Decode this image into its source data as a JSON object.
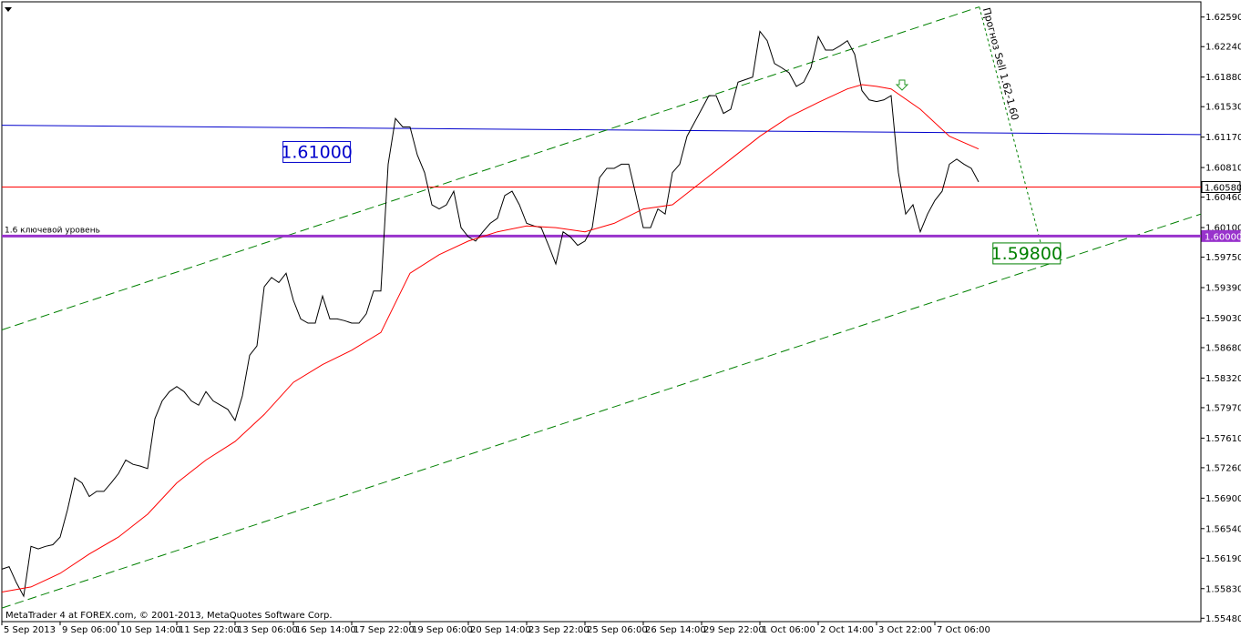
{
  "chart_data": {
    "type": "line",
    "footer": "MetaTrader 4 at FOREX.com, © 2001-2013, MetaQuotes Software Corp.",
    "xlim": [
      0,
      164.5
    ],
    "ylim": [
      1.5544,
      1.6277
    ],
    "xticks": [
      {
        "value": 0,
        "label": "5 Sep 2013"
      },
      {
        "value": 8,
        "label": "9 Sep 06:00"
      },
      {
        "value": 16,
        "label": "10 Sep 14:00"
      },
      {
        "value": 24,
        "label": "11 Sep 22:00"
      },
      {
        "value": 32,
        "label": "13 Sep 06:00"
      },
      {
        "value": 40,
        "label": "16 Sep 14:00"
      },
      {
        "value": 48,
        "label": "17 Sep 22:00"
      },
      {
        "value": 56,
        "label": "19 Sep 06:00"
      },
      {
        "value": 64,
        "label": "20 Sep 14:00"
      },
      {
        "value": 72,
        "label": "23 Sep 22:00"
      },
      {
        "value": 80,
        "label": "25 Sep 06:00"
      },
      {
        "value": 88,
        "label": "26 Sep 14:00"
      },
      {
        "value": 96,
        "label": "29 Sep 22:00"
      },
      {
        "value": 104,
        "label": "1 Oct 06:00"
      },
      {
        "value": 112,
        "label": "2 Oct 14:00"
      },
      {
        "value": 120,
        "label": "3 Oct 22:00"
      },
      {
        "value": 128,
        "label": "7 Oct 06:00"
      }
    ],
    "yticks": [
      {
        "value": 1.6259,
        "label": "1.62590"
      },
      {
        "value": 1.6224,
        "label": "1.62240"
      },
      {
        "value": 1.6188,
        "label": "1.61880"
      },
      {
        "value": 1.6153,
        "label": "1.61530"
      },
      {
        "value": 1.6117,
        "label": "1.61170"
      },
      {
        "value": 1.6081,
        "label": "1.60810"
      },
      {
        "value": 1.6046,
        "label": "1.60460"
      },
      {
        "value": 1.601,
        "label": "1.60100"
      },
      {
        "value": 1.5975,
        "label": "1.59750"
      },
      {
        "value": 1.5939,
        "label": "1.59390"
      },
      {
        "value": 1.5903,
        "label": "1.59030"
      },
      {
        "value": 1.5868,
        "label": "1.58680"
      },
      {
        "value": 1.5832,
        "label": "1.58320"
      },
      {
        "value": 1.5797,
        "label": "1.57970"
      },
      {
        "value": 1.5761,
        "label": "1.57610"
      },
      {
        "value": 1.5726,
        "label": "1.57260"
      },
      {
        "value": 1.569,
        "label": "1.56900"
      },
      {
        "value": 1.5654,
        "label": "1.56540"
      },
      {
        "value": 1.5619,
        "label": "1.56190"
      },
      {
        "value": 1.5583,
        "label": "1.55830"
      },
      {
        "value": 1.5548,
        "label": "1.55480"
      }
    ],
    "series": [
      {
        "color": "#000000",
        "values": [
          1.5606,
          1.5609,
          1.559,
          1.5574,
          1.5633,
          1.563,
          1.5633,
          1.5635,
          1.5644,
          1.5676,
          1.5714,
          1.5708,
          1.5692,
          1.5698,
          1.5698,
          1.5708,
          1.5719,
          1.5735,
          1.573,
          1.5728,
          1.5725,
          1.5784,
          1.5805,
          1.5816,
          1.5822,
          1.5816,
          1.5805,
          1.58,
          1.5816,
          1.5805,
          1.58,
          1.5795,
          1.5782,
          1.5811,
          1.5859,
          1.587,
          1.594,
          1.5951,
          1.5945,
          1.5956,
          1.5924,
          1.5902,
          1.5897,
          1.5897,
          1.5929,
          1.5902,
          1.5902,
          1.59,
          1.5897,
          1.5897,
          1.5908,
          1.5935,
          1.5935,
          1.6085,
          1.6139,
          1.6129,
          1.6129,
          1.6096,
          1.6075,
          1.6037,
          1.6032,
          1.6037,
          1.6053,
          1.601,
          1.5999,
          1.5994,
          1.6005,
          1.6015,
          1.6021,
          1.6048,
          1.6053,
          1.6037,
          1.6015,
          1.6012,
          1.601,
          1.5989,
          1.5967,
          1.6005,
          1.5999,
          1.5989,
          1.5994,
          1.601,
          1.6069,
          1.608,
          1.608,
          1.6085,
          1.6085,
          1.6048,
          1.601,
          1.601,
          1.6032,
          1.6026,
          1.6075,
          1.6085,
          1.6118,
          1.6134,
          1.615,
          1.6166,
          1.6166,
          1.6145,
          1.615,
          1.6182,
          1.6185,
          1.6188,
          1.6242,
          1.6231,
          1.6204,
          1.6199,
          1.6193,
          1.6177,
          1.6182,
          1.6199,
          1.6236,
          1.622,
          1.622,
          1.6225,
          1.6231,
          1.6215,
          1.6172,
          1.6161,
          1.6159,
          1.6161,
          1.6166,
          1.6075,
          1.6026,
          1.6037,
          1.6005,
          1.6026,
          1.6042,
          1.6053,
          1.6085,
          1.6091,
          1.6085,
          1.608,
          1.6064
        ]
      },
      {
        "color": "#ff0000",
        "x": [
          0,
          4,
          8,
          12,
          16,
          20,
          24,
          28,
          32,
          36,
          40,
          44,
          48,
          52,
          56,
          60,
          64,
          68,
          72,
          76,
          80,
          84,
          88,
          92,
          96,
          100,
          104,
          108,
          112,
          116,
          118,
          120,
          122,
          126,
          130,
          134
        ],
        "values": [
          1.5579,
          1.5585,
          1.5601,
          1.5624,
          1.5644,
          1.5671,
          1.5708,
          1.5735,
          1.5757,
          1.5789,
          1.5827,
          1.5848,
          1.5865,
          1.5886,
          1.5956,
          1.5978,
          1.5994,
          1.6005,
          1.6012,
          1.601,
          1.6005,
          1.6015,
          1.6032,
          1.6037,
          1.6064,
          1.6091,
          1.6118,
          1.6141,
          1.6158,
          1.6174,
          1.6179,
          1.6177,
          1.6174,
          1.615,
          1.6118,
          1.6103
        ]
      }
    ],
    "levels": [
      {
        "value": 1.6058,
        "label": "1.60580",
        "color": "#ff0000"
      },
      {
        "value": 1.6,
        "label": "1.60000",
        "color": "#9933cc"
      }
    ],
    "level_note": "1.6 ключевой уровень",
    "trendlines": [
      {
        "color": "#0000cc",
        "x": [
          0,
          164.5
        ],
        "y": [
          1.6131,
          1.612
        ]
      },
      {
        "color": "#008000",
        "dash": "dashed",
        "x": [
          0,
          134.1
        ],
        "y": [
          1.5889,
          1.6271
        ]
      },
      {
        "color": "#008000",
        "dash": "dashed",
        "x": [
          0,
          164.5
        ],
        "y": [
          1.556,
          1.6026
        ]
      },
      {
        "color": "#008000",
        "dash": "dotted",
        "x": [
          134.1,
          142.6
        ],
        "y": [
          1.6271,
          1.5989
        ],
        "label": "Прогноз Sell 1.62-1.60"
      }
    ],
    "annotations": [
      {
        "value": 1.61,
        "label": "1.61000",
        "color": "#0000cc",
        "x": 43.2
      },
      {
        "value": 1.598,
        "label": "1.59800",
        "color": "#008000",
        "x": 140.6
      }
    ]
  }
}
